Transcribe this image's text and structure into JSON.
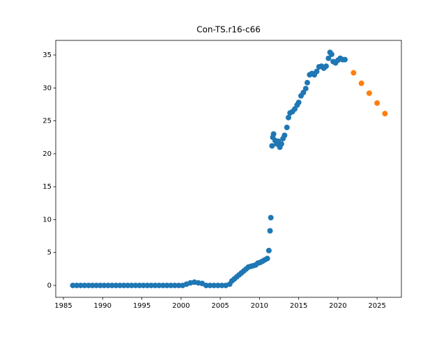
{
  "chart_data": {
    "type": "scatter",
    "title": "Con-TS.r16-c66",
    "series": [
      {
        "color": "#1f77b4",
        "x": [
          1986.2,
          1986.7,
          1987.2,
          1987.7,
          1988.2,
          1988.7,
          1989.2,
          1989.7,
          1990.2,
          1990.7,
          1991.2,
          1991.7,
          1992.2,
          1992.7,
          1993.2,
          1993.7,
          1994.2,
          1994.7,
          1995.2,
          1995.7,
          1996.2,
          1996.7,
          1997.2,
          1997.7,
          1998.2,
          1998.7,
          1999.2,
          1999.7,
          2000.2,
          2000.7,
          2001.2,
          2001.7,
          2002.2,
          2002.7,
          2003.2,
          2003.7,
          2004.2,
          2004.7,
          2005.2,
          2005.7,
          2006.2,
          2006.5,
          2006.8,
          2007.1,
          2007.4,
          2007.7,
          2008.0,
          2008.3,
          2008.6,
          2008.9,
          2009.2,
          2009.5,
          2009.8,
          2010.1,
          2010.4,
          2010.7,
          2011.0,
          2011.2,
          2011.35,
          2011.45,
          2011.6,
          2011.7,
          2011.8,
          2012.0,
          2012.2,
          2012.4,
          2012.6,
          2012.8,
          2013.0,
          2013.2,
          2013.5,
          2013.7,
          2013.9,
          2014.2,
          2014.5,
          2014.8,
          2015.0,
          2015.3,
          2015.6,
          2015.9,
          2016.1,
          2016.4,
          2016.7,
          2017.0,
          2017.3,
          2017.6,
          2017.9,
          2018.2,
          2018.5,
          2018.8,
          2019.0,
          2019.2,
          2019.4,
          2019.7,
          2020.0,
          2020.3,
          2020.6,
          2020.9
        ],
        "values": [
          0,
          0,
          0,
          0,
          0,
          0,
          0,
          0,
          0,
          0,
          0,
          0,
          0,
          0,
          0,
          0,
          0,
          0,
          0,
          0,
          0,
          0,
          0,
          0,
          0,
          0,
          0,
          0,
          0,
          0.2,
          0.4,
          0.5,
          0.4,
          0.3,
          0,
          0,
          0,
          0,
          0,
          0,
          0.2,
          0.7,
          1.0,
          1.3,
          1.6,
          1.9,
          2.2,
          2.5,
          2.8,
          2.9,
          3.0,
          3.1,
          3.4,
          3.5,
          3.7,
          3.9,
          4.1,
          5.3,
          8.3,
          10.3,
          21.2,
          22.5,
          23.0,
          22.0,
          21.5,
          21.9,
          21.0,
          21.5,
          22.3,
          22.8,
          24.0,
          25.5,
          26.2,
          26.4,
          26.8,
          27.4,
          27.8,
          28.8,
          29.3,
          29.9,
          30.8,
          32.0,
          32.2,
          32.0,
          32.5,
          33.2,
          33.3,
          33.0,
          33.3,
          34.5,
          35.4,
          35.1,
          34.0,
          33.8,
          34.2,
          34.5,
          34.3,
          34.3
        ]
      },
      {
        "color": "#ff7f0e",
        "x": [
          2022,
          2023,
          2024,
          2025,
          2026
        ],
        "values": [
          32.3,
          30.7,
          29.2,
          27.7,
          26.1
        ]
      }
    ],
    "xlim": [
      1984.02,
      2028.1
    ],
    "xticks": [
      1985,
      1990,
      1995,
      2000,
      2005,
      2010,
      2015,
      2020,
      2025
    ],
    "ylim": [
      -1.8,
      37.22
    ],
    "yticks": [
      0,
      5,
      10,
      15,
      20,
      25,
      30,
      35
    ]
  }
}
